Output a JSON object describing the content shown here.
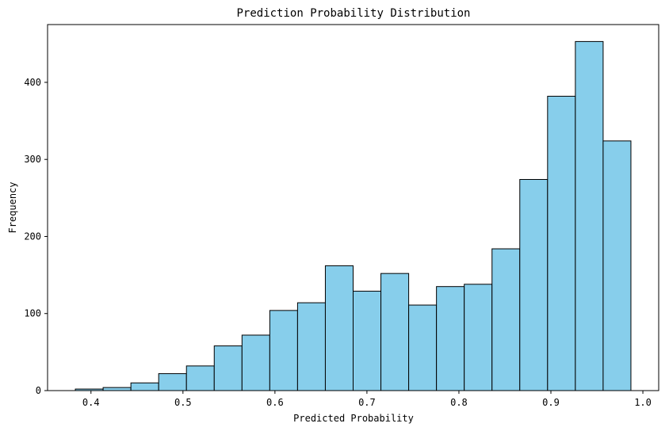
{
  "chart_data": {
    "type": "bar",
    "title": "Prediction Probability Distribution",
    "xlabel": "Predicted Probability",
    "ylabel": "Frequency",
    "xlim": [
      0.3528,
      1.0172
    ],
    "ylim": [
      0,
      475
    ],
    "x_ticks": [
      0.4,
      0.5,
      0.6,
      0.7,
      0.8,
      0.9,
      1.0
    ],
    "x_tick_labels": [
      "0.4",
      "0.5",
      "0.6",
      "0.7",
      "0.8",
      "0.9",
      "1.0"
    ],
    "y_ticks": [
      0,
      100,
      200,
      300,
      400
    ],
    "y_tick_labels": [
      "0",
      "100",
      "200",
      "300",
      "400"
    ],
    "grid": false,
    "bar_color": "#87ceeb",
    "edge_color": "#000000",
    "bins": [
      [
        0.383,
        0.4132
      ],
      [
        0.4132,
        0.4434
      ],
      [
        0.4434,
        0.4736
      ],
      [
        0.4736,
        0.5038
      ],
      [
        0.5038,
        0.534
      ],
      [
        0.534,
        0.5642
      ],
      [
        0.5642,
        0.5944
      ],
      [
        0.5944,
        0.6246
      ],
      [
        0.6246,
        0.6548
      ],
      [
        0.6548,
        0.685
      ],
      [
        0.685,
        0.7152
      ],
      [
        0.7152,
        0.7454
      ],
      [
        0.7454,
        0.7756
      ],
      [
        0.7756,
        0.8058
      ],
      [
        0.8058,
        0.836
      ],
      [
        0.836,
        0.8662
      ],
      [
        0.8662,
        0.8964
      ],
      [
        0.8964,
        0.9266
      ],
      [
        0.9266,
        0.9568
      ],
      [
        0.9568,
        0.987
      ]
    ],
    "values": [
      2,
      4,
      10,
      22,
      32,
      58,
      72,
      104,
      114,
      162,
      129,
      152,
      111,
      135,
      138,
      184,
      274,
      382,
      453,
      324
    ]
  }
}
